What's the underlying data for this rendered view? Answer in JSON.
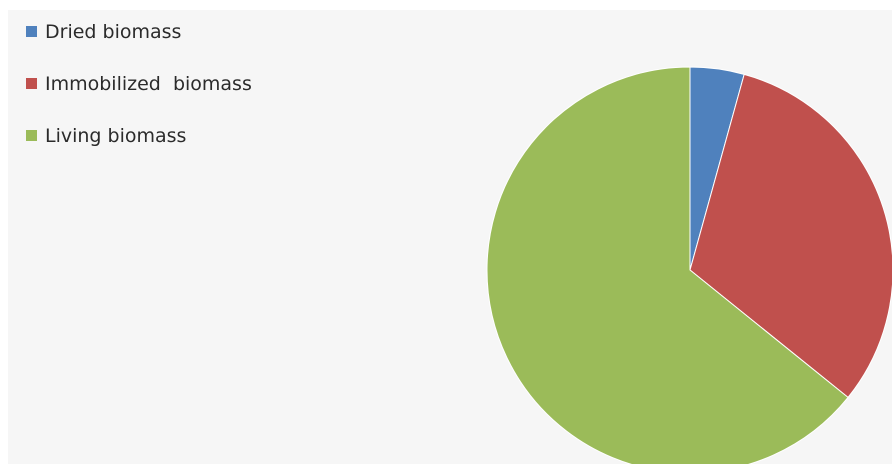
{
  "chart_data": {
    "type": "pie",
    "categories": [
      "Dried biomass",
      "Immobilized  biomass",
      "Living biomass"
    ],
    "values": [
      4.3,
      31.5,
      64.2
    ],
    "colors": [
      "#4f81bd",
      "#c0504d",
      "#9bbb59"
    ],
    "start_angle_deg": 0,
    "direction": "clockwise",
    "legend_position": "top-left",
    "title": ""
  }
}
